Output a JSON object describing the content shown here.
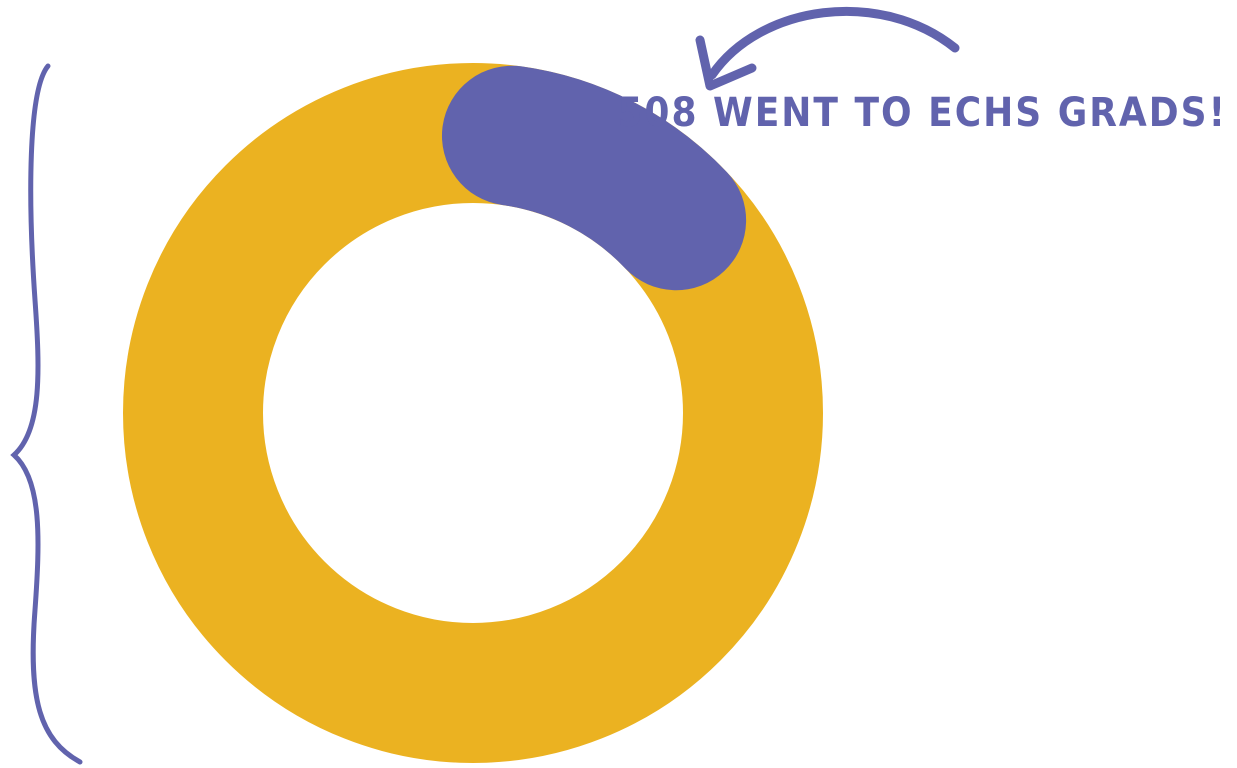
{
  "chart_data": {
    "type": "pie",
    "style": "donut",
    "slices": [
      {
        "value": 508,
        "color": "#6163AD"
      },
      {
        "value": 4242,
        "color": "#EBB221"
      }
    ],
    "annotations": [
      {
        "text": "508 WENT TO ECHS GRADS!",
        "color": "#6163AD",
        "points_to_slice": 0
      }
    ],
    "legend": "none",
    "grid": false
  },
  "colors": {
    "background": "#FFFFFF",
    "accent": "#6163AD",
    "ring": "#EBB221"
  }
}
